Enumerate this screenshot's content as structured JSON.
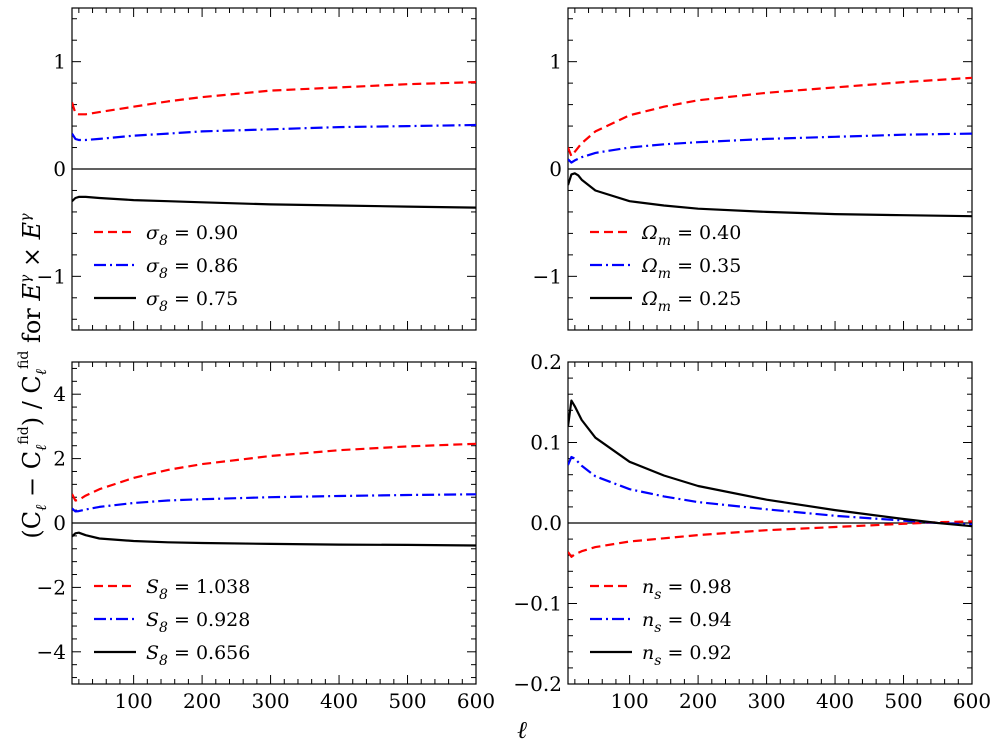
{
  "figure": {
    "ylabel_main": "(C",
    "ylabel": "(C_ℓ − C_ℓ^fid) / C_ℓ^fid for E^γ × E^γ",
    "xlabel": "ℓ"
  },
  "colors": {
    "red": "#ff0000",
    "blue": "#0000ff",
    "black": "#000000"
  },
  "chart_data": [
    {
      "type": "line",
      "panel": "top-left",
      "xlim": [
        10,
        600
      ],
      "ylim": [
        -1.5,
        1.5
      ],
      "xticks": [
        100,
        200,
        300,
        400,
        500,
        600
      ],
      "yticks": [
        -1,
        0,
        1
      ],
      "tick_labels_x": [],
      "tick_labels_y": [
        "−1",
        "0",
        "1"
      ],
      "legend_position": "lower-left",
      "series": [
        {
          "name": "σ8 = 0.90",
          "color": "red",
          "style": "dashed",
          "x": [
            10,
            15,
            20,
            30,
            50,
            100,
            150,
            200,
            300,
            400,
            500,
            600
          ],
          "y": [
            0.62,
            0.52,
            0.51,
            0.51,
            0.53,
            0.58,
            0.63,
            0.67,
            0.73,
            0.76,
            0.79,
            0.81
          ]
        },
        {
          "name": "σ8 = 0.86",
          "color": "blue",
          "style": "dashdot",
          "x": [
            10,
            15,
            20,
            30,
            50,
            100,
            150,
            200,
            300,
            400,
            500,
            600
          ],
          "y": [
            0.33,
            0.28,
            0.27,
            0.27,
            0.28,
            0.31,
            0.33,
            0.35,
            0.37,
            0.39,
            0.4,
            0.41
          ]
        },
        {
          "name": "σ8 = 0.75",
          "color": "black",
          "style": "solid",
          "x": [
            10,
            15,
            20,
            30,
            50,
            100,
            150,
            200,
            300,
            400,
            500,
            600
          ],
          "y": [
            -0.3,
            -0.27,
            -0.26,
            -0.26,
            -0.27,
            -0.29,
            -0.3,
            -0.31,
            -0.33,
            -0.34,
            -0.35,
            -0.36
          ]
        }
      ]
    },
    {
      "type": "line",
      "panel": "top-right",
      "xlim": [
        10,
        600
      ],
      "ylim": [
        -1.5,
        1.5
      ],
      "xticks": [
        100,
        200,
        300,
        400,
        500,
        600
      ],
      "yticks": [
        -1,
        0,
        1
      ],
      "tick_labels_x": [],
      "tick_labels_y": [
        "−1",
        "0",
        "1"
      ],
      "legend_position": "lower-left",
      "series": [
        {
          "name": "Ωm = 0.40",
          "color": "red",
          "style": "dashed",
          "x": [
            10,
            15,
            20,
            30,
            50,
            100,
            150,
            200,
            300,
            400,
            500,
            600
          ],
          "y": [
            0.2,
            0.12,
            0.16,
            0.24,
            0.35,
            0.5,
            0.58,
            0.64,
            0.71,
            0.76,
            0.81,
            0.85
          ]
        },
        {
          "name": "Ωm = 0.35",
          "color": "blue",
          "style": "dashdot",
          "x": [
            10,
            15,
            20,
            30,
            50,
            100,
            150,
            200,
            300,
            400,
            500,
            600
          ],
          "y": [
            0.09,
            0.06,
            0.08,
            0.11,
            0.15,
            0.2,
            0.23,
            0.25,
            0.28,
            0.3,
            0.32,
            0.33
          ]
        },
        {
          "name": "Ωm = 0.25",
          "color": "black",
          "style": "solid",
          "x": [
            10,
            15,
            20,
            25,
            30,
            50,
            100,
            150,
            200,
            300,
            400,
            500,
            600
          ],
          "y": [
            -0.15,
            -0.05,
            -0.04,
            -0.06,
            -0.1,
            -0.2,
            -0.3,
            -0.34,
            -0.37,
            -0.4,
            -0.42,
            -0.43,
            -0.44
          ]
        }
      ]
    },
    {
      "type": "line",
      "panel": "bottom-left",
      "xlim": [
        10,
        600
      ],
      "ylim": [
        -5,
        5
      ],
      "xticks": [
        100,
        200,
        300,
        400,
        500,
        600
      ],
      "yticks": [
        -4,
        -2,
        0,
        2,
        4
      ],
      "tick_labels_x": [
        "100",
        "200",
        "300",
        "400",
        "500",
        "600"
      ],
      "tick_labels_y": [
        "−4",
        "−2",
        "0",
        "2",
        "4"
      ],
      "legend_position": "lower-left",
      "series": [
        {
          "name": "S8 = 1.038",
          "color": "red",
          "style": "dashed",
          "x": [
            10,
            15,
            20,
            30,
            50,
            100,
            150,
            200,
            300,
            400,
            500,
            600
          ],
          "y": [
            0.9,
            0.7,
            0.72,
            0.85,
            1.05,
            1.4,
            1.65,
            1.83,
            2.08,
            2.26,
            2.38,
            2.46
          ]
        },
        {
          "name": "S8 = 0.928",
          "color": "blue",
          "style": "dashdot",
          "x": [
            10,
            15,
            20,
            30,
            50,
            100,
            150,
            200,
            300,
            400,
            500,
            600
          ],
          "y": [
            0.45,
            0.36,
            0.37,
            0.42,
            0.5,
            0.62,
            0.7,
            0.74,
            0.8,
            0.84,
            0.87,
            0.89
          ]
        },
        {
          "name": "S8 = 0.656",
          "color": "black",
          "style": "solid",
          "x": [
            10,
            15,
            20,
            30,
            50,
            100,
            150,
            200,
            300,
            400,
            500,
            600
          ],
          "y": [
            -0.42,
            -0.32,
            -0.3,
            -0.38,
            -0.48,
            -0.56,
            -0.6,
            -0.62,
            -0.65,
            -0.67,
            -0.68,
            -0.7
          ]
        }
      ]
    },
    {
      "type": "line",
      "panel": "bottom-right",
      "xlim": [
        10,
        600
      ],
      "ylim": [
        -0.2,
        0.2
      ],
      "xticks": [
        100,
        200,
        300,
        400,
        500,
        600
      ],
      "yticks": [
        -0.2,
        -0.1,
        0.0,
        0.1,
        0.2
      ],
      "tick_labels_x": [
        "100",
        "200",
        "300",
        "400",
        "500",
        "600"
      ],
      "tick_labels_y": [
        "−0.2",
        "−0.1",
        "0.0",
        "0.1",
        "0.2"
      ],
      "legend_position": "lower-left",
      "series": [
        {
          "name": "ns = 0.98",
          "color": "red",
          "style": "dashed",
          "x": [
            10,
            15,
            20,
            30,
            50,
            100,
            150,
            200,
            300,
            400,
            500,
            550,
            600
          ],
          "y": [
            -0.036,
            -0.042,
            -0.039,
            -0.035,
            -0.03,
            -0.023,
            -0.019,
            -0.015,
            -0.009,
            -0.005,
            -0.001,
            0.001,
            0.002
          ]
        },
        {
          "name": "ns = 0.94",
          "color": "blue",
          "style": "dashdot",
          "x": [
            10,
            15,
            20,
            30,
            50,
            100,
            150,
            200,
            300,
            400,
            500,
            550,
            600
          ],
          "y": [
            0.072,
            0.082,
            0.08,
            0.071,
            0.058,
            0.042,
            0.033,
            0.026,
            0.017,
            0.009,
            0.003,
            0.0,
            -0.002
          ]
        },
        {
          "name": "ns = 0.92",
          "color": "black",
          "style": "solid",
          "x": [
            10,
            15,
            20,
            30,
            50,
            100,
            150,
            200,
            300,
            400,
            500,
            550,
            600
          ],
          "y": [
            0.12,
            0.152,
            0.145,
            0.128,
            0.106,
            0.076,
            0.059,
            0.046,
            0.029,
            0.016,
            0.005,
            0.0,
            -0.004
          ]
        }
      ]
    }
  ]
}
